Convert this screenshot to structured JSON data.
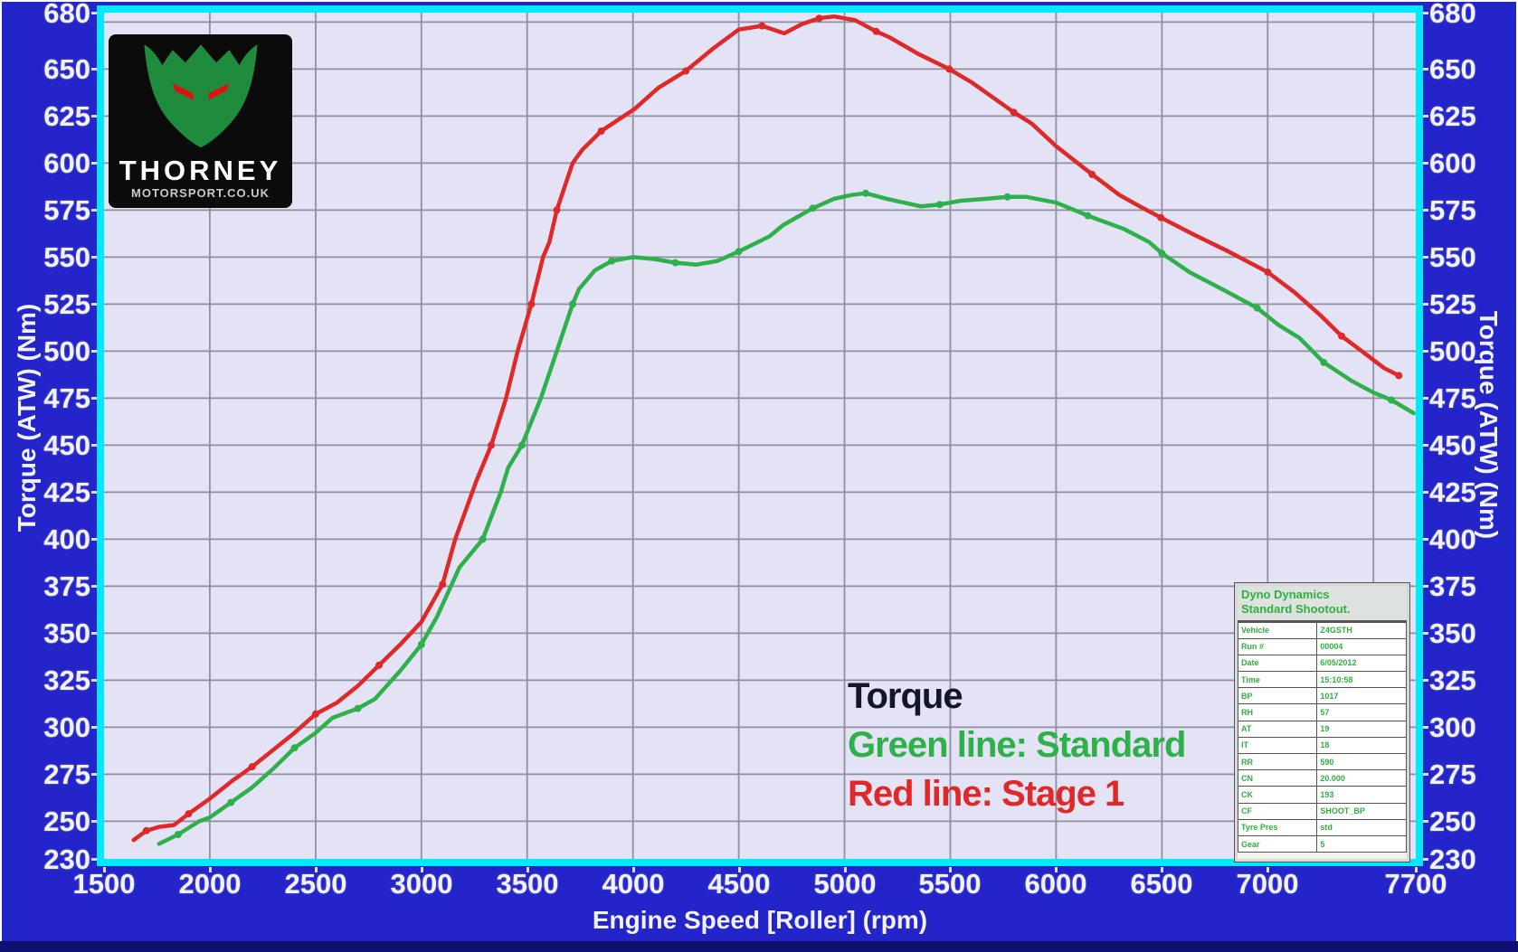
{
  "colors": {
    "background_blue": "#2424cb",
    "cyan_border": "#00eaff",
    "plot_background": "#e3e3f5",
    "gridline": "#8f8fa0",
    "red_line": "#e02828",
    "green_line": "#2eb04a",
    "table_text_green": "#2fb040",
    "legend_title": "#15152a"
  },
  "logo": {
    "line1": "THORNEY",
    "line2": "MOTORSPORT.CO.UK"
  },
  "legend": {
    "title": "Torque",
    "green_label": "Green line: Standard",
    "red_label": "Red line: Stage 1"
  },
  "axes": {
    "x_title": "Engine Speed [Roller] (rpm)",
    "y_title_left": "Torque (ATW) (Nm)",
    "y_title_right": "Torque (ATW) (Nm)"
  },
  "info_table": {
    "header_line1": "Dyno Dynamics",
    "header_line2": "Standard Shootout.",
    "rows": [
      {
        "label": "Vehicle",
        "value": "Z4GSTH"
      },
      {
        "label": "Run #",
        "value": "00004"
      },
      {
        "label": "Date",
        "value": "6/05/2012"
      },
      {
        "label": "Time",
        "value": "15:10:58"
      },
      {
        "label": "BP",
        "value": "1017"
      },
      {
        "label": "RH",
        "value": "57"
      },
      {
        "label": "AT",
        "value": "19"
      },
      {
        "label": "IT",
        "value": "18"
      },
      {
        "label": "RR",
        "value": "590"
      },
      {
        "label": "CN",
        "value": "20.000"
      },
      {
        "label": "CK",
        "value": "193"
      },
      {
        "label": "CF",
        "value": "SHOOT_BP"
      },
      {
        "label": "Tyre Pres",
        "value": "std"
      },
      {
        "label": "Gear",
        "value": "5"
      }
    ]
  },
  "chart_data": {
    "type": "line",
    "title": "Torque",
    "xlabel": "Engine Speed [Roller] (rpm)",
    "ylabel": "Torque (ATW) (Nm)",
    "xlim": [
      1500,
      7700
    ],
    "ylim": [
      230,
      680
    ],
    "xticks": [
      1500,
      2000,
      2500,
      3000,
      3500,
      4000,
      4500,
      5000,
      5500,
      6000,
      6500,
      7000,
      7700
    ],
    "yticks": [
      230,
      250,
      275,
      300,
      325,
      350,
      375,
      400,
      425,
      450,
      475,
      500,
      525,
      550,
      575,
      600,
      625,
      650,
      680
    ],
    "xgrid": [
      2000,
      2500,
      3000,
      3500,
      4000,
      4500,
      5000,
      5500,
      6000,
      6500,
      7000,
      7500
    ],
    "ygrid": [
      250,
      275,
      300,
      325,
      350,
      375,
      400,
      425,
      450,
      475,
      500,
      525,
      550,
      575,
      600,
      625,
      650,
      675
    ],
    "grid": true,
    "legend_position": "center-bottom",
    "marker_every": 3,
    "series": [
      {
        "name": "Standard",
        "color": "#2eb04a",
        "points": [
          [
            1760,
            238
          ],
          [
            1850,
            243
          ],
          [
            1950,
            250
          ],
          [
            2000,
            252
          ],
          [
            2100,
            260
          ],
          [
            2200,
            268
          ],
          [
            2300,
            278
          ],
          [
            2400,
            289
          ],
          [
            2500,
            297
          ],
          [
            2580,
            305
          ],
          [
            2700,
            310
          ],
          [
            2780,
            315
          ],
          [
            2900,
            330
          ],
          [
            3000,
            344
          ],
          [
            3075,
            359
          ],
          [
            3180,
            385
          ],
          [
            3290,
            400
          ],
          [
            3375,
            425
          ],
          [
            3410,
            438
          ],
          [
            3475,
            450
          ],
          [
            3565,
            475
          ],
          [
            3640,
            500
          ],
          [
            3715,
            525
          ],
          [
            3745,
            533
          ],
          [
            3820,
            543
          ],
          [
            3900,
            548
          ],
          [
            4000,
            550
          ],
          [
            4100,
            549
          ],
          [
            4200,
            547
          ],
          [
            4300,
            546
          ],
          [
            4400,
            548
          ],
          [
            4500,
            553
          ],
          [
            4645,
            561
          ],
          [
            4710,
            567
          ],
          [
            4850,
            576
          ],
          [
            4950,
            581
          ],
          [
            5030,
            583
          ],
          [
            5100,
            584
          ],
          [
            5200,
            581
          ],
          [
            5360,
            577
          ],
          [
            5450,
            578
          ],
          [
            5550,
            580
          ],
          [
            5670,
            581
          ],
          [
            5770,
            582
          ],
          [
            5860,
            582
          ],
          [
            6000,
            579
          ],
          [
            6150,
            572
          ],
          [
            6320,
            565
          ],
          [
            6440,
            558
          ],
          [
            6500,
            552
          ],
          [
            6630,
            542
          ],
          [
            6800,
            532
          ],
          [
            6950,
            523
          ],
          [
            7050,
            514
          ],
          [
            7150,
            507
          ],
          [
            7265,
            494
          ],
          [
            7400,
            484
          ],
          [
            7500,
            478
          ],
          [
            7585,
            474
          ],
          [
            7690,
            467
          ]
        ]
      },
      {
        "name": "Stage 1",
        "color": "#e02828",
        "points": [
          [
            1640,
            240
          ],
          [
            1700,
            245
          ],
          [
            1760,
            247
          ],
          [
            1830,
            248
          ],
          [
            1900,
            254
          ],
          [
            2000,
            262
          ],
          [
            2100,
            271
          ],
          [
            2200,
            279
          ],
          [
            2300,
            288
          ],
          [
            2400,
            297
          ],
          [
            2500,
            307
          ],
          [
            2600,
            313
          ],
          [
            2700,
            322
          ],
          [
            2800,
            333
          ],
          [
            2900,
            344
          ],
          [
            3000,
            356
          ],
          [
            3100,
            376
          ],
          [
            3160,
            400
          ],
          [
            3260,
            431
          ],
          [
            3330,
            450
          ],
          [
            3400,
            475
          ],
          [
            3455,
            500
          ],
          [
            3520,
            525
          ],
          [
            3575,
            550
          ],
          [
            3605,
            558
          ],
          [
            3640,
            575
          ],
          [
            3715,
            600
          ],
          [
            3760,
            607
          ],
          [
            3850,
            617
          ],
          [
            4010,
            629
          ],
          [
            4120,
            640
          ],
          [
            4250,
            649
          ],
          [
            4380,
            661
          ],
          [
            4500,
            671
          ],
          [
            4610,
            673
          ],
          [
            4715,
            669
          ],
          [
            4800,
            674
          ],
          [
            4880,
            677
          ],
          [
            4950,
            678
          ],
          [
            5050,
            676
          ],
          [
            5150,
            670
          ],
          [
            5210,
            667
          ],
          [
            5350,
            658
          ],
          [
            5495,
            650
          ],
          [
            5600,
            643
          ],
          [
            5700,
            635
          ],
          [
            5800,
            627
          ],
          [
            5885,
            621
          ],
          [
            6000,
            609
          ],
          [
            6170,
            594
          ],
          [
            6300,
            583
          ],
          [
            6395,
            577
          ],
          [
            6495,
            571
          ],
          [
            6650,
            562
          ],
          [
            6815,
            553
          ],
          [
            7000,
            542
          ],
          [
            7130,
            531
          ],
          [
            7250,
            519
          ],
          [
            7350,
            508
          ],
          [
            7445,
            500
          ],
          [
            7550,
            491
          ],
          [
            7620,
            487
          ]
        ]
      }
    ]
  }
}
